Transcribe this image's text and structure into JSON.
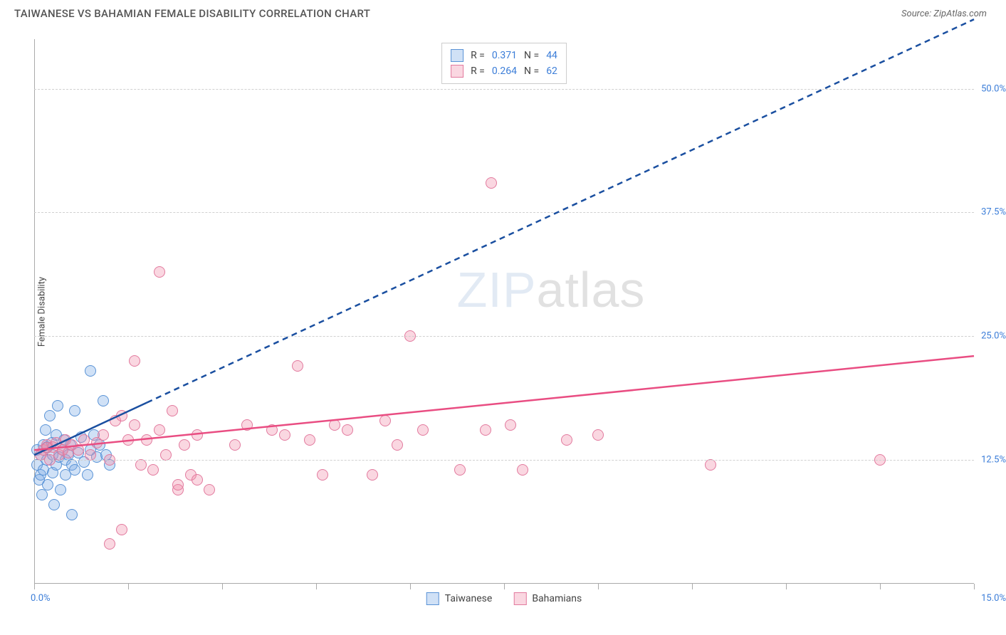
{
  "title": "TAIWANESE VS BAHAMIAN FEMALE DISABILITY CORRELATION CHART",
  "source_label": "Source: ZipAtlas.com",
  "ylabel": "Female Disability",
  "watermark": {
    "part1": "ZIP",
    "part2": "atlas"
  },
  "chart": {
    "type": "scatter",
    "xlim": [
      0,
      15
    ],
    "ylim": [
      0,
      55
    ],
    "x_tick_labels": {
      "min": "0.0%",
      "max": "15.0%"
    },
    "x_tick_positions": [
      0,
      1.5,
      3.0,
      4.5,
      6.0,
      7.5,
      9.0,
      10.5,
      12.0,
      13.5,
      15.0
    ],
    "y_ticks": [
      {
        "v": 12.5,
        "label": "12.5%"
      },
      {
        "v": 25.0,
        "label": "25.0%"
      },
      {
        "v": 37.5,
        "label": "37.5%"
      },
      {
        "v": 50.0,
        "label": "50.0%"
      }
    ],
    "grid_color": "#d0d0d0",
    "background_color": "#ffffff",
    "marker_radius": 8,
    "marker_stroke_width": 1.5
  },
  "series": [
    {
      "name": "Taiwanese",
      "legend_label": "Taiwanese",
      "R": "0.371",
      "N": "44",
      "fill": "rgba(120,170,230,0.35)",
      "stroke": "#5a93d6",
      "line_color": "#1a4fa0",
      "trend_solid": {
        "x1": 0,
        "y1": 13.0,
        "x2": 1.8,
        "y2": 18.3
      },
      "trend_dashed": {
        "x1": 1.8,
        "y1": 18.3,
        "x2": 15.0,
        "y2": 57.0
      },
      "points": [
        [
          0.05,
          12.0
        ],
        [
          0.05,
          13.5
        ],
        [
          0.08,
          10.5
        ],
        [
          0.1,
          11.0
        ],
        [
          0.1,
          13.0
        ],
        [
          0.12,
          9.0
        ],
        [
          0.15,
          14.0
        ],
        [
          0.15,
          11.5
        ],
        [
          0.18,
          15.5
        ],
        [
          0.2,
          12.5
        ],
        [
          0.2,
          13.8
        ],
        [
          0.22,
          10.0
        ],
        [
          0.25,
          17.0
        ],
        [
          0.28,
          14.2
        ],
        [
          0.3,
          13.0
        ],
        [
          0.3,
          11.2
        ],
        [
          0.32,
          8.0
        ],
        [
          0.35,
          12.0
        ],
        [
          0.35,
          15.0
        ],
        [
          0.38,
          18.0
        ],
        [
          0.4,
          12.8
        ],
        [
          0.42,
          9.5
        ],
        [
          0.45,
          13.5
        ],
        [
          0.48,
          14.5
        ],
        [
          0.5,
          12.5
        ],
        [
          0.5,
          11.0
        ],
        [
          0.55,
          13.0
        ],
        [
          0.58,
          14.0
        ],
        [
          0.6,
          12.0
        ],
        [
          0.65,
          11.5
        ],
        [
          0.7,
          13.2
        ],
        [
          0.75,
          14.8
        ],
        [
          0.8,
          12.3
        ],
        [
          0.85,
          11.0
        ],
        [
          0.9,
          13.5
        ],
        [
          0.95,
          15.0
        ],
        [
          1.0,
          12.8
        ],
        [
          1.05,
          14.0
        ],
        [
          1.1,
          18.5
        ],
        [
          1.15,
          13.0
        ],
        [
          1.2,
          12.0
        ],
        [
          0.6,
          7.0
        ],
        [
          0.9,
          21.5
        ],
        [
          0.65,
          17.5
        ]
      ]
    },
    {
      "name": "Bahamians",
      "legend_label": "Bahamians",
      "R": "0.264",
      "N": "62",
      "fill": "rgba(240,140,170,0.35)",
      "stroke": "#e27a9e",
      "line_color": "#e94d82",
      "trend_solid": {
        "x1": 0,
        "y1": 13.5,
        "x2": 15.0,
        "y2": 23.0
      },
      "trend_dashed": null,
      "points": [
        [
          0.1,
          13.0
        ],
        [
          0.15,
          13.5
        ],
        [
          0.2,
          14.0
        ],
        [
          0.25,
          12.5
        ],
        [
          0.3,
          13.8
        ],
        [
          0.35,
          14.2
        ],
        [
          0.4,
          13.0
        ],
        [
          0.45,
          13.5
        ],
        [
          0.5,
          14.5
        ],
        [
          0.55,
          13.2
        ],
        [
          0.6,
          14.0
        ],
        [
          0.7,
          13.5
        ],
        [
          0.8,
          14.5
        ],
        [
          0.9,
          13.0
        ],
        [
          1.0,
          14.2
        ],
        [
          1.1,
          15.0
        ],
        [
          1.2,
          12.5
        ],
        [
          1.3,
          16.5
        ],
        [
          1.4,
          17.0
        ],
        [
          1.5,
          14.5
        ],
        [
          1.6,
          16.0
        ],
        [
          1.7,
          12.0
        ],
        [
          1.8,
          14.5
        ],
        [
          1.9,
          11.5
        ],
        [
          2.0,
          15.5
        ],
        [
          2.1,
          13.0
        ],
        [
          2.2,
          17.5
        ],
        [
          2.3,
          9.5
        ],
        [
          2.4,
          14.0
        ],
        [
          2.5,
          11.0
        ],
        [
          2.6,
          15.0
        ],
        [
          1.2,
          4.0
        ],
        [
          1.4,
          5.5
        ],
        [
          1.6,
          22.5
        ],
        [
          2.0,
          31.5
        ],
        [
          2.3,
          10.0
        ],
        [
          2.6,
          10.5
        ],
        [
          2.8,
          9.5
        ],
        [
          3.2,
          14.0
        ],
        [
          3.4,
          16.0
        ],
        [
          3.8,
          15.5
        ],
        [
          4.0,
          15.0
        ],
        [
          4.2,
          22.0
        ],
        [
          4.4,
          14.5
        ],
        [
          4.6,
          11.0
        ],
        [
          4.8,
          16.0
        ],
        [
          5.0,
          15.5
        ],
        [
          5.4,
          11.0
        ],
        [
          5.6,
          16.5
        ],
        [
          5.8,
          14.0
        ],
        [
          6.0,
          25.0
        ],
        [
          6.2,
          15.5
        ],
        [
          6.8,
          11.5
        ],
        [
          7.2,
          15.5
        ],
        [
          7.3,
          40.5
        ],
        [
          7.6,
          16.0
        ],
        [
          7.8,
          11.5
        ],
        [
          8.5,
          14.5
        ],
        [
          9.0,
          15.0
        ],
        [
          10.8,
          12.0
        ],
        [
          13.5,
          12.5
        ],
        [
          0.2,
          13.7
        ]
      ]
    }
  ],
  "legend_top_labels": {
    "R": "R  =",
    "N": "N  ="
  }
}
